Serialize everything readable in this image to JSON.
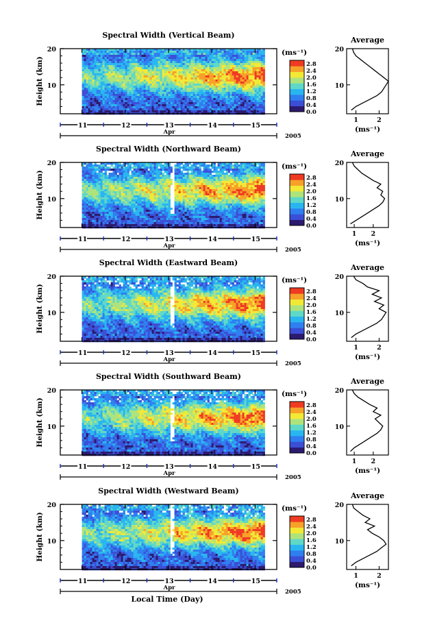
{
  "chart_data": {
    "type": "heatmap",
    "x_axis": {
      "tick_labels": [
        "11",
        "12",
        "13",
        "14",
        "15"
      ],
      "month_label": "Apr",
      "year_label": "2005",
      "label": "Local Time (Day)",
      "range_days": [
        10.5,
        15.5
      ],
      "data_start_day": 11.0,
      "data_end_day": 15.2
    },
    "y_axis": {
      "label": "Height (km)",
      "tick_labels": [
        "10",
        "20"
      ],
      "range_km": [
        2,
        20
      ]
    },
    "colorbar": {
      "unit": "(ms⁻¹)",
      "ticks": [
        "0.0",
        "0.4",
        "0.8",
        "1.2",
        "1.6",
        "2.0",
        "2.4",
        "2.8"
      ],
      "range": [
        0.0,
        3.0
      ],
      "colors": [
        "#2c1a6e",
        "#3a4fd6",
        "#2f7ff0",
        "#29b6f0",
        "#5fd8c8",
        "#aee37c",
        "#f2e936",
        "#f7a128",
        "#ef3b22"
      ]
    },
    "average": {
      "title": "Average",
      "xlabel": "(ms⁻¹)"
    },
    "panels": [
      {
        "title": "Spectral Width (Vertical Beam)",
        "avg_xticks": [
          "1",
          "2"
        ],
        "avg_xrange": [
          0.6,
          2.4
        ],
        "average_profile": [
          [
            0.8,
            3
          ],
          [
            1.0,
            4
          ],
          [
            1.3,
            5
          ],
          [
            1.6,
            6
          ],
          [
            1.9,
            7
          ],
          [
            2.1,
            8
          ],
          [
            2.2,
            9
          ],
          [
            2.3,
            10
          ],
          [
            2.4,
            11
          ],
          [
            2.2,
            12
          ],
          [
            2.0,
            13
          ],
          [
            1.8,
            14
          ],
          [
            1.6,
            15
          ],
          [
            1.4,
            16
          ],
          [
            1.2,
            17
          ],
          [
            1.0,
            18
          ],
          [
            0.9,
            19
          ],
          [
            0.85,
            20
          ]
        ],
        "gaps": []
      },
      {
        "title": "Spectral Width (Northward Beam)",
        "avg_xticks": [
          "1",
          "2"
        ],
        "avg_xrange": [
          0.6,
          2.8
        ],
        "average_profile": [
          [
            0.8,
            3
          ],
          [
            1.1,
            4
          ],
          [
            1.4,
            5
          ],
          [
            1.7,
            6
          ],
          [
            2.0,
            7
          ],
          [
            2.3,
            8
          ],
          [
            2.5,
            9
          ],
          [
            2.6,
            10
          ],
          [
            2.4,
            11
          ],
          [
            2.5,
            12
          ],
          [
            2.2,
            13
          ],
          [
            2.4,
            14
          ],
          [
            2.0,
            15
          ],
          [
            1.7,
            16
          ],
          [
            1.4,
            17
          ],
          [
            1.2,
            18
          ],
          [
            1.0,
            19
          ],
          [
            0.9,
            20
          ]
        ],
        "gaps": [
          [
            13.0,
            13.12
          ]
        ]
      },
      {
        "title": "Spectral Width (Eastward Beam)",
        "avg_xticks": [
          "1",
          "2"
        ],
        "avg_xrange": [
          0.6,
          2.4
        ],
        "average_profile": [
          [
            0.8,
            3
          ],
          [
            1.0,
            4
          ],
          [
            1.3,
            5
          ],
          [
            1.6,
            6
          ],
          [
            1.9,
            7
          ],
          [
            2.1,
            8
          ],
          [
            2.2,
            9
          ],
          [
            2.3,
            10
          ],
          [
            2.0,
            11
          ],
          [
            2.2,
            12
          ],
          [
            1.8,
            13
          ],
          [
            2.1,
            14
          ],
          [
            1.7,
            15
          ],
          [
            2.0,
            16
          ],
          [
            1.5,
            17
          ],
          [
            1.3,
            18
          ],
          [
            1.0,
            19
          ],
          [
            0.9,
            20
          ]
        ],
        "gaps": [
          [
            13.0,
            13.12
          ]
        ]
      },
      {
        "title": "Spectral Width (Southward Beam)",
        "avg_xticks": [
          "1",
          "2"
        ],
        "avg_xrange": [
          0.6,
          2.8
        ],
        "average_profile": [
          [
            0.8,
            3
          ],
          [
            1.0,
            4
          ],
          [
            1.3,
            5
          ],
          [
            1.6,
            6
          ],
          [
            1.9,
            7
          ],
          [
            2.2,
            8
          ],
          [
            2.4,
            9
          ],
          [
            2.5,
            10
          ],
          [
            2.3,
            11
          ],
          [
            2.1,
            12
          ],
          [
            2.4,
            13
          ],
          [
            2.0,
            14
          ],
          [
            2.2,
            15
          ],
          [
            1.8,
            16
          ],
          [
            1.5,
            17
          ],
          [
            1.2,
            18
          ],
          [
            1.0,
            19
          ],
          [
            0.9,
            20
          ]
        ],
        "gaps": [
          [
            13.0,
            13.12
          ]
        ]
      },
      {
        "title": "Spectral Width (Westward Beam)",
        "avg_xticks": [
          "1",
          "2"
        ],
        "avg_xrange": [
          0.6,
          2.4
        ],
        "average_profile": [
          [
            0.8,
            3
          ],
          [
            1.0,
            4
          ],
          [
            1.3,
            5
          ],
          [
            1.6,
            6
          ],
          [
            1.9,
            7
          ],
          [
            2.1,
            8
          ],
          [
            2.3,
            9
          ],
          [
            2.2,
            10
          ],
          [
            2.0,
            11
          ],
          [
            1.7,
            12
          ],
          [
            1.5,
            13
          ],
          [
            1.8,
            14
          ],
          [
            1.4,
            15
          ],
          [
            1.6,
            16
          ],
          [
            1.3,
            17
          ],
          [
            1.1,
            18
          ],
          [
            0.9,
            19
          ],
          [
            0.85,
            20
          ]
        ],
        "gaps": [
          [
            13.0,
            13.12
          ]
        ]
      }
    ]
  }
}
